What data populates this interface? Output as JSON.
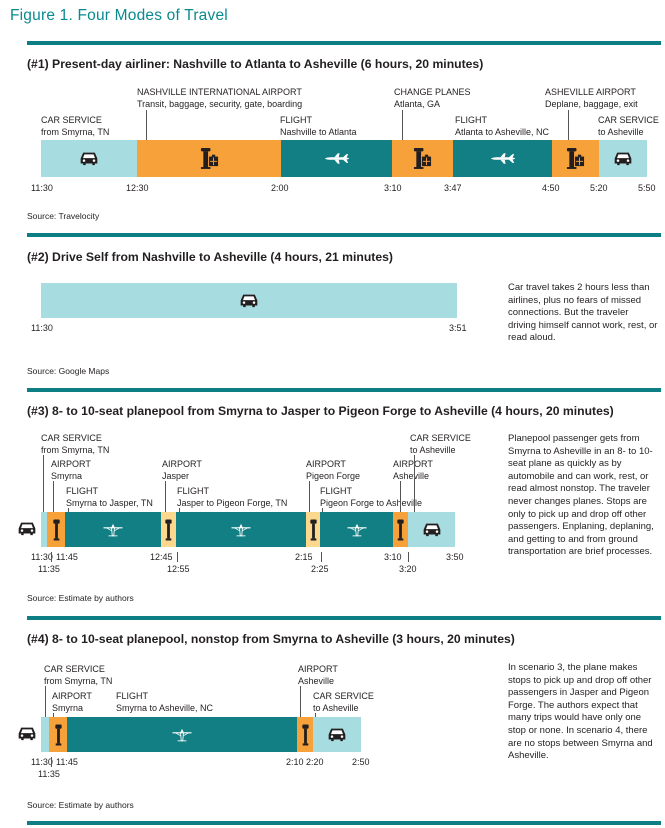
{
  "figure_title": "Figure 1. Four Modes of Travel",
  "colors": {
    "rule": "#0d7f84",
    "car": "#a7dde0",
    "airport": "#f7a13a",
    "flight": "#117f83",
    "planepool_stop": "#fcd88e",
    "title_teal": "#0a8a8f"
  },
  "icons": [
    "car-icon",
    "airport-tower-icon",
    "airplane-icon",
    "small-plane-icon",
    "control-tower-icon"
  ],
  "s1": {
    "title": "(#1) Present-day airliner: Nashville to Atlanta to Asheville (6 hours, 20 minutes)",
    "labels": {
      "nash_airport": "NASHVILLE INTERNATIONAL AIRPORT",
      "nash_airport_sub": "Transit, baggage, security, gate, boarding",
      "change": "CHANGE PLANES",
      "change_sub": "Atlanta, GA",
      "ash_airport": "ASHEVILLE AIRPORT",
      "ash_airport_sub": "Deplane, baggage, exit",
      "car1": "CAR SERVICE",
      "car1_sub": "from Smyrna, TN",
      "flight1": "FLIGHT",
      "flight1_sub": "Nashville to Atlanta",
      "flight2": "FLIGHT",
      "flight2_sub": "Atlanta to Asheville, NC",
      "car2": "CAR SERVICE",
      "car2_sub": "to Asheville"
    },
    "times": [
      "11:30",
      "12:30",
      "2:00",
      "3:10",
      "3:47",
      "4:50",
      "5:20",
      "5:50"
    ],
    "source": "Source: Travelocity"
  },
  "s2": {
    "title": "(#2) Drive Self from Nashville to Asheville (4 hours, 21 minutes)",
    "times": [
      "11:30",
      "3:51"
    ],
    "side": "Car travel takes 2 hours less than airlines, plus no fears of missed connections. But the traveler driving himself cannot work, rest, or read aloud.",
    "source": "Source: Google Maps"
  },
  "s3": {
    "title": "(#3) 8- to 10-seat planepool from Smyrna to Jasper to Pigeon Forge to Asheville (4 hours, 20 minutes)",
    "labels": {
      "car1": "CAR SERVICE",
      "car1_sub": "from Smyrna, TN",
      "car2": "CAR SERVICE",
      "car2_sub": "to Asheville",
      "ap1": "AIRPORT",
      "ap1_sub": "Smyrna",
      "ap2": "AIRPORT",
      "ap2_sub": "Jasper",
      "ap3": "AIRPORT",
      "ap3_sub": "Pigeon Forge",
      "ap4": "AIRPORT",
      "ap4_sub": "Asheville",
      "fl1": "FLIGHT",
      "fl1_sub": "Smyrna to Jasper, TN",
      "fl2": "FLIGHT",
      "fl2_sub": "Jasper to Pigeon Forge, TN",
      "fl3": "FLIGHT",
      "fl3_sub": "Pigeon Forge to Asheville"
    },
    "times": [
      "11:30",
      "11:45",
      "11:35",
      "12:45",
      "12:55",
      "2:15",
      "2:25",
      "3:10",
      "3:20",
      "3:50"
    ],
    "side": "Planepool passenger gets from Smyrna to Asheville in an 8- to 10-seat plane as quickly as by automobile and can work, rest, or read almost nonstop. The traveler never changes planes. Stops are only to pick up and drop off other passengers. Enplaning, deplaning, and getting to and from ground transportation are brief processes.",
    "source": "Source: Estimate by authors"
  },
  "s4": {
    "title": "(#4) 8- to 10-seat planepool, nonstop from Smyrna to Asheville (3 hours, 20 minutes)",
    "labels": {
      "car1": "CAR SERVICE",
      "car1_sub": "from Smyrna, TN",
      "ap1": "AIRPORT",
      "ap1_sub": "Smyrna",
      "fl1": "FLIGHT",
      "fl1_sub": "Smyrna to Asheville, NC",
      "ap2": "AIRPORT",
      "ap2_sub": "Asheville",
      "car2": "CAR SERVICE",
      "car2_sub": "to Asheville"
    },
    "times": [
      "11:30",
      "11:45",
      "11:35",
      "2:10",
      "2:20",
      "2:50"
    ],
    "side": "In scenario 3, the plane makes stops to pick up and drop off other passengers in Jasper and Pigeon Forge. The authors expect that many trips would have only one stop or none. In scenario 4, there are no stops between Smyrna and Asheville.",
    "source": "Source: Estimate by authors"
  }
}
